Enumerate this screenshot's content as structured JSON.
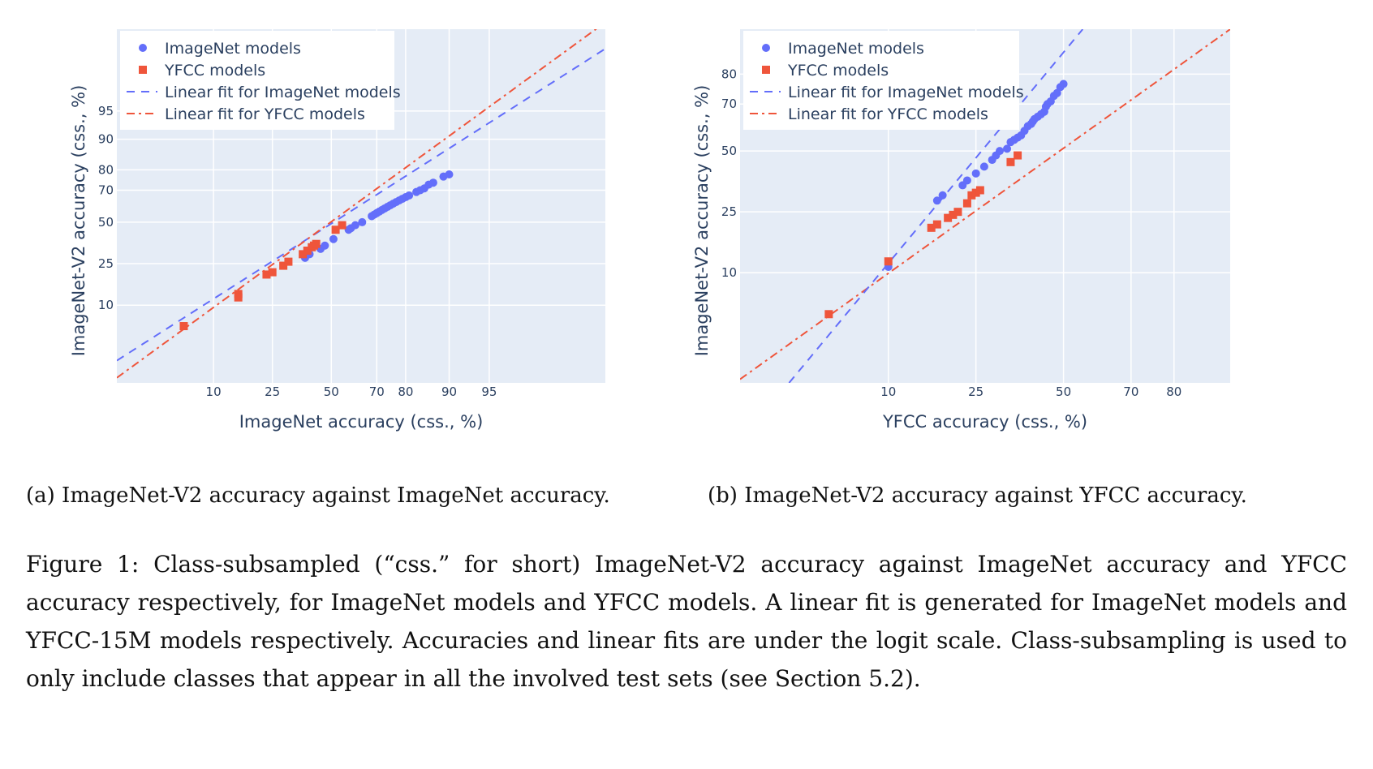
{
  "chart_data": [
    {
      "type": "scatter",
      "panel": "a",
      "xlabel": "ImageNet accuracy (css., %)",
      "ylabel": "ImageNet-V2 accuracy (css., %)",
      "axis_scale": "logit",
      "xlim": [
        1.8,
        99.4
      ],
      "ylim": [
        1.4,
        99.4
      ],
      "xticks": [
        10,
        25,
        50,
        70,
        80,
        90,
        95
      ],
      "yticks": [
        10,
        25,
        50,
        70,
        80,
        90,
        95
      ],
      "legend_position": "top-left",
      "series": [
        {
          "name": "ImageNet models",
          "kind": "scatter",
          "marker": "circle",
          "color": "#636efa",
          "points": [
            [
              38,
              28
            ],
            [
              40,
              30
            ],
            [
              45,
              33
            ],
            [
              47,
              35
            ],
            [
              51,
              39
            ],
            [
              58,
              45
            ],
            [
              59,
              46
            ],
            [
              61,
              48
            ],
            [
              64,
              50
            ],
            [
              68,
              54
            ],
            [
              69,
              55
            ],
            [
              70,
              56
            ],
            [
              71,
              57
            ],
            [
              72,
              58
            ],
            [
              73,
              59
            ],
            [
              74,
              60
            ],
            [
              75,
              61
            ],
            [
              76,
              62
            ],
            [
              77,
              63
            ],
            [
              78,
              64
            ],
            [
              79,
              65
            ],
            [
              80,
              66
            ],
            [
              81,
              67
            ],
            [
              83,
              69
            ],
            [
              84,
              70
            ],
            [
              85,
              71
            ],
            [
              86,
              73
            ],
            [
              87,
              74
            ],
            [
              89,
              77
            ],
            [
              90,
              78
            ]
          ]
        },
        {
          "name": "YFCC models",
          "kind": "scatter",
          "marker": "square",
          "color": "#ef553b",
          "points": [
            [
              6,
              6
            ],
            [
              15,
              13
            ],
            [
              15,
              12
            ],
            [
              23,
              20
            ],
            [
              25,
              21
            ],
            [
              29,
              24
            ],
            [
              31,
              26
            ],
            [
              37,
              30
            ],
            [
              39,
              32
            ],
            [
              41,
              34
            ],
            [
              42,
              35
            ],
            [
              43,
              36
            ],
            [
              52,
              45
            ],
            [
              55,
              48
            ]
          ]
        },
        {
          "name": "Linear fit for ImageNet models",
          "kind": "line",
          "dash": "dash",
          "color": "#636efa",
          "points": [
            [
              1.8,
              2.5
            ],
            [
              99.4,
              99.0
            ]
          ]
        },
        {
          "name": "Linear fit for YFCC models",
          "kind": "line",
          "dash": "dashdot",
          "color": "#ef553b",
          "points": [
            [
              1.8,
              1.6
            ],
            [
              99.4,
              99.5
            ]
          ]
        }
      ]
    },
    {
      "type": "scatter",
      "panel": "b",
      "xlabel": "YFCC accuracy (css., %)",
      "ylabel": "ImageNet-V2 accuracy (css., %)",
      "axis_scale": "logit",
      "xlim": [
        1.7,
        89
      ],
      "ylim": [
        1.5,
        90
      ],
      "xticks": [
        10,
        25,
        50,
        70,
        80
      ],
      "yticks": [
        10,
        25,
        50,
        70,
        80
      ],
      "legend_position": "top-left",
      "series": [
        {
          "name": "ImageNet models",
          "kind": "scatter",
          "marker": "circle",
          "color": "#636efa",
          "points": [
            [
              10,
              11
            ],
            [
              17,
              29
            ],
            [
              18,
              31
            ],
            [
              22,
              35
            ],
            [
              23,
              37
            ],
            [
              25,
              40
            ],
            [
              27,
              43
            ],
            [
              29,
              46
            ],
            [
              30,
              48
            ],
            [
              31,
              50
            ],
            [
              33,
              51
            ],
            [
              34,
              54
            ],
            [
              35,
              55
            ],
            [
              36,
              56
            ],
            [
              37,
              57
            ],
            [
              38,
              59
            ],
            [
              39,
              61
            ],
            [
              40,
              62
            ],
            [
              40.5,
              63
            ],
            [
              41,
              64
            ],
            [
              42,
              65
            ],
            [
              43,
              66
            ],
            [
              44,
              67
            ],
            [
              44.5,
              69
            ],
            [
              45,
              70
            ],
            [
              46,
              71
            ],
            [
              47,
              73
            ],
            [
              48,
              74
            ],
            [
              49,
              76
            ],
            [
              50,
              77
            ]
          ]
        },
        {
          "name": "YFCC models",
          "kind": "scatter",
          "marker": "square",
          "color": "#ef553b",
          "points": [
            [
              5,
              5
            ],
            [
              10,
              12
            ],
            [
              16,
              20
            ],
            [
              17,
              21
            ],
            [
              19,
              23
            ],
            [
              20,
              24
            ],
            [
              21,
              25
            ],
            [
              23,
              28
            ],
            [
              24,
              31
            ],
            [
              25,
              32
            ],
            [
              26,
              33
            ],
            [
              34,
              45
            ],
            [
              36,
              48
            ]
          ]
        },
        {
          "name": "Linear fit for YFCC models",
          "kind": "line",
          "dash": "dashdot",
          "color": "#ef553b",
          "points": [
            [
              1.7,
              1.6
            ],
            [
              89,
              90
            ]
          ]
        },
        {
          "name": "Linear fit for ImageNet models",
          "kind": "line",
          "dash": "dash",
          "color": "#636efa",
          "points": [
            [
              3.1,
              1.5
            ],
            [
              56,
              90
            ]
          ]
        }
      ]
    }
  ],
  "captions": {
    "a": "(a) ImageNet-V2 accuracy against ImageNet accuracy.",
    "b": "(b) ImageNet-V2 accuracy against YFCC accuracy.",
    "figure": "Figure 1: Class-subsampled (“css.” for short) ImageNet-V2 accuracy against ImageNet accuracy and YFCC accuracy respectively, for ImageNet models and YFCC models. A linear fit is generated for ImageNet models and YFCC-15M models respectively. Accuracies and linear fits are under the logit scale. Class-subsampling is used to only include classes that appear in all the involved test sets (see Section 5.2)."
  }
}
